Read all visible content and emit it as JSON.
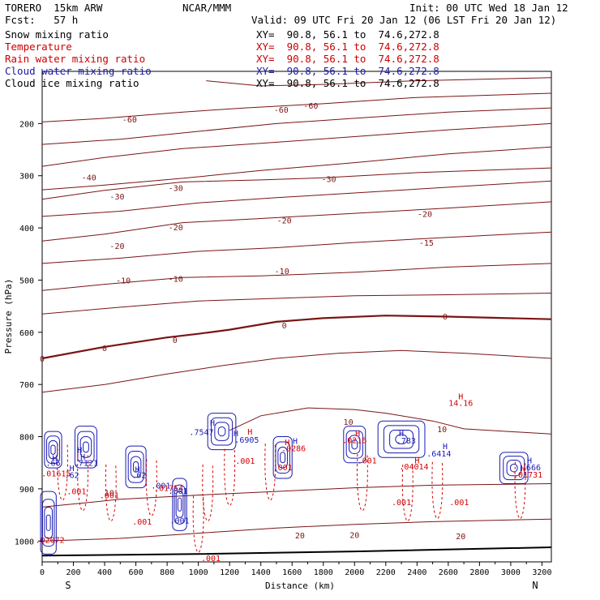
{
  "header": {
    "model": "TORERO  15km ARW",
    "fcst": "Fcst:   57 h",
    "center": "NCAR/MMM",
    "init": "Init: 00 UTC Wed 18 Jan 12",
    "valid": "Valid: 09 UTC Fri 20 Jan 12 (06 LST Fri 20 Jan 12)"
  },
  "legend": [
    {
      "label": "Snow mixing ratio",
      "xy": "XY=  90.8, 56.1 to  74.6,272.8",
      "color": "#000000"
    },
    {
      "label": "Temperature",
      "xy": "XY=  90.8, 56.1 to  74.6,272.8",
      "color": "#cc0000"
    },
    {
      "label": "Rain water mixing ratio",
      "xy": "XY=  90.8, 56.1 to  74.6,272.8",
      "color": "#cc0000"
    },
    {
      "label": "Cloud water mixing ratio",
      "xy": "XY=  90.8, 56.1 to  74.6,272.8",
      "color": "#1a1aa0"
    },
    {
      "label": "Cloud ice mixing ratio",
      "xy": "XY=  90.8, 56.1 to  74.6,272.8",
      "color": "#000000"
    }
  ],
  "colors": {
    "temperature": "#7a1414",
    "rain": "#d40000",
    "cloud_water": "#1a1ab4",
    "terrain": "#000000"
  },
  "chart_data": {
    "type": "contour-cross-section",
    "xlabel": "Distance (km)",
    "ylabel": "Pressure (hPa)",
    "xlim": [
      0,
      3260
    ],
    "ylim": [
      1040,
      100
    ],
    "x_ticks": [
      0,
      200,
      400,
      600,
      800,
      1000,
      1200,
      1400,
      1600,
      1800,
      2000,
      2200,
      2400,
      2600,
      2800,
      3000,
      3200
    ],
    "y_ticks": [
      200,
      300,
      400,
      500,
      600,
      700,
      800,
      900,
      1000
    ],
    "endpoints": {
      "left": "S",
      "right": "N"
    },
    "terrain_surface": [
      [
        0,
        1028
      ],
      [
        1000,
        1025
      ],
      [
        2000,
        1020
      ],
      [
        3260,
        1012
      ]
    ],
    "temperature_contours": [
      {
        "level": -60,
        "points": [
          [
            0,
            197
          ],
          [
            400,
            190
          ],
          [
            900,
            178
          ],
          [
            1300,
            170
          ],
          [
            1800,
            162
          ],
          [
            2400,
            150
          ],
          [
            3260,
            142
          ]
        ],
        "labels": [
          [
            560,
            192,
            "-60"
          ],
          [
            1530,
            173,
            "-60"
          ],
          [
            1720,
            165,
            "-60"
          ]
        ]
      },
      {
        "level": -60,
        "points": [
          [
            1050,
            118
          ],
          [
            1400,
            128
          ],
          [
            1800,
            125
          ],
          [
            2400,
            118
          ],
          [
            3260,
            112
          ]
        ],
        "labels": []
      },
      {
        "level": -50,
        "points": [
          [
            0,
            240
          ],
          [
            500,
            230
          ],
          [
            1000,
            215
          ],
          [
            1500,
            200
          ],
          [
            2000,
            190
          ],
          [
            2600,
            178
          ],
          [
            3260,
            170
          ]
        ],
        "labels": []
      },
      {
        "level": -40,
        "points": [
          [
            0,
            282
          ],
          [
            400,
            265
          ],
          [
            900,
            248
          ],
          [
            1400,
            238
          ],
          [
            2000,
            225
          ],
          [
            2600,
            212
          ],
          [
            3260,
            200
          ]
        ],
        "labels": [
          [
            300,
            303,
            "-40"
          ]
        ]
      },
      {
        "level": -35,
        "points": [
          [
            0,
            327
          ],
          [
            400,
            318
          ],
          [
            900,
            305
          ],
          [
            1400,
            290
          ],
          [
            2000,
            275
          ],
          [
            2600,
            258
          ],
          [
            3260,
            245
          ]
        ],
        "labels": []
      },
      {
        "level": -30,
        "points": [
          [
            0,
            345
          ],
          [
            400,
            328
          ],
          [
            900,
            312
          ],
          [
            1400,
            308
          ],
          [
            1800,
            304
          ],
          [
            2400,
            294
          ],
          [
            3260,
            285
          ]
        ],
        "labels": [
          [
            480,
            339,
            "-30"
          ],
          [
            855,
            323,
            "-30"
          ],
          [
            1835,
            306,
            "-30"
          ]
        ]
      },
      {
        "level": -25,
        "points": [
          [
            0,
            378
          ],
          [
            500,
            368
          ],
          [
            1000,
            352
          ],
          [
            1500,
            342
          ],
          [
            2000,
            333
          ],
          [
            2600,
            322
          ],
          [
            3260,
            310
          ]
        ],
        "labels": []
      },
      {
        "level": -20,
        "points": [
          [
            0,
            425
          ],
          [
            400,
            412
          ],
          [
            900,
            390
          ],
          [
            1400,
            382
          ],
          [
            2000,
            372
          ],
          [
            2600,
            362
          ],
          [
            3260,
            350
          ]
        ],
        "labels": [
          [
            480,
            434,
            "-20"
          ],
          [
            855,
            398,
            "-20"
          ],
          [
            1550,
            385,
            "-20"
          ],
          [
            2450,
            373,
            "-20"
          ]
        ]
      },
      {
        "level": -15,
        "points": [
          [
            0,
            468
          ],
          [
            500,
            458
          ],
          [
            1000,
            445
          ],
          [
            1500,
            438
          ],
          [
            2000,
            428
          ],
          [
            2600,
            418
          ],
          [
            3260,
            408
          ]
        ],
        "labels": [
          [
            2460,
            428,
            "-15"
          ]
        ]
      },
      {
        "level": -10,
        "points": [
          [
            0,
            520
          ],
          [
            400,
            508
          ],
          [
            900,
            495
          ],
          [
            1400,
            492
          ],
          [
            2000,
            485
          ],
          [
            2600,
            475
          ],
          [
            3260,
            468
          ]
        ],
        "labels": [
          [
            520,
            500,
            "-10"
          ],
          [
            855,
            497,
            "-10"
          ],
          [
            1535,
            482,
            "-10"
          ]
        ]
      },
      {
        "level": -5,
        "points": [
          [
            0,
            565
          ],
          [
            500,
            552
          ],
          [
            1000,
            540
          ],
          [
            1500,
            535
          ],
          [
            2000,
            530
          ],
          [
            2600,
            528
          ],
          [
            3260,
            525
          ]
        ],
        "labels": []
      },
      {
        "level": 0,
        "points": [
          [
            0,
            650
          ],
          [
            400,
            628
          ],
          [
            800,
            610
          ],
          [
            1000,
            603
          ],
          [
            1200,
            595
          ],
          [
            1500,
            580
          ],
          [
            1800,
            573
          ],
          [
            2200,
            568
          ],
          [
            2600,
            570
          ],
          [
            3260,
            575
          ]
        ],
        "labels": [
          [
            0,
            650,
            "0"
          ],
          [
            400,
            630,
            "0"
          ],
          [
            850,
            614,
            "0"
          ],
          [
            1550,
            586,
            "0"
          ],
          [
            2580,
            569,
            "0"
          ]
        ]
      },
      {
        "level": 5,
        "points": [
          [
            0,
            715
          ],
          [
            400,
            700
          ],
          [
            800,
            680
          ],
          [
            1150,
            664
          ],
          [
            1500,
            650
          ],
          [
            1900,
            640
          ],
          [
            2300,
            635
          ],
          [
            2700,
            640
          ],
          [
            3260,
            650
          ]
        ],
        "labels": []
      },
      {
        "level": 10,
        "points": [
          [
            1200,
            788
          ],
          [
            1400,
            760
          ],
          [
            1700,
            745
          ],
          [
            2000,
            748
          ],
          [
            2200,
            755
          ],
          [
            2500,
            770
          ],
          [
            2700,
            785
          ],
          [
            3260,
            795
          ]
        ],
        "labels": [
          [
            1960,
            771,
            "10"
          ],
          [
            2560,
            785,
            "10"
          ],
          [
            430,
            907,
            "10"
          ]
        ]
      },
      {
        "level": 15,
        "points": [
          [
            0,
            935
          ],
          [
            500,
            920
          ],
          [
            1000,
            912
          ],
          [
            1500,
            905
          ],
          [
            2000,
            898
          ],
          [
            2500,
            893
          ],
          [
            3260,
            890
          ]
        ],
        "labels": []
      },
      {
        "level": 20,
        "points": [
          [
            0,
            1000
          ],
          [
            500,
            995
          ],
          [
            1000,
            985
          ],
          [
            1500,
            975
          ],
          [
            2000,
            968
          ],
          [
            2500,
            963
          ],
          [
            3260,
            958
          ]
        ],
        "labels": [
          [
            1650,
            989,
            "20"
          ],
          [
            2000,
            988,
            "20"
          ],
          [
            2680,
            990,
            "20"
          ]
        ]
      }
    ],
    "cloud_water_blobs": [
      {
        "x": 70,
        "p": 825,
        "rx": 55,
        "ry": 35
      },
      {
        "x": 280,
        "p": 820,
        "rx": 70,
        "ry": 40
      },
      {
        "x": 600,
        "p": 858,
        "rx": 65,
        "ry": 40
      },
      {
        "x": 880,
        "p": 930,
        "rx": 45,
        "ry": 50
      },
      {
        "x": 1150,
        "p": 790,
        "rx": 90,
        "ry": 35
      },
      {
        "x": 1540,
        "p": 840,
        "rx": 60,
        "ry": 40
      },
      {
        "x": 2000,
        "p": 815,
        "rx": 70,
        "ry": 35
      },
      {
        "x": 2300,
        "p": 805,
        "rx": 150,
        "ry": 35
      },
      {
        "x": 3020,
        "p": 860,
        "rx": 90,
        "ry": 30
      },
      {
        "x": 40,
        "p": 965,
        "rx": 50,
        "ry": 60
      }
    ],
    "rain_streaks": [
      [
        130,
        860
      ],
      [
        260,
        880
      ],
      [
        440,
        900
      ],
      [
        700,
        890
      ],
      [
        1060,
        900
      ],
      [
        1200,
        870
      ],
      [
        1460,
        860
      ],
      [
        2050,
        880
      ],
      [
        2340,
        900
      ],
      [
        2530,
        895
      ],
      [
        3060,
        895
      ],
      [
        1000,
        960
      ]
    ],
    "annotations": [
      {
        "x": 80,
        "p": 840,
        "text": "H",
        "color": "#1a1ab4"
      },
      {
        "x": 70,
        "p": 850,
        "text": ".66",
        "color": "#1a1ab4"
      },
      {
        "x": 240,
        "p": 825,
        "text": "H",
        "color": "#1a1ab4"
      },
      {
        "x": 260,
        "p": 838,
        "text": "H",
        "color": "#1a1ab4"
      },
      {
        "x": 280,
        "p": 850,
        "text": ".7121",
        "color": "#1a1ab4"
      },
      {
        "x": 90,
        "p": 870,
        "text": ".01615",
        "color": "#d40000"
      },
      {
        "x": 190,
        "p": 860,
        "text": "H",
        "color": "#1a1ab4"
      },
      {
        "x": 190,
        "p": 873,
        "text": ".62",
        "color": "#1a1ab4"
      },
      {
        "x": 620,
        "p": 873,
        "text": ".62",
        "color": "#1a1ab4"
      },
      {
        "x": 610,
        "p": 862,
        "text": "H",
        "color": "#1a1ab4"
      },
      {
        "x": 1240,
        "p": 793,
        "text": "H",
        "color": "#1a1ab4"
      },
      {
        "x": 1020,
        "p": 791,
        "text": ".7547",
        "color": "#1a1ab4"
      },
      {
        "x": 1090,
        "p": 773,
        "text": "H",
        "color": "#1a1ab4"
      },
      {
        "x": 1330,
        "p": 790,
        "text": "H",
        "color": "#d40000"
      },
      {
        "x": 1310,
        "p": 805,
        "text": ".6905",
        "color": "#1a1ab4"
      },
      {
        "x": 1620,
        "p": 808,
        "text": "H",
        "color": "#1a1ab4"
      },
      {
        "x": 1570,
        "p": 810,
        "text": "H",
        "color": "#d40000"
      },
      {
        "x": 1610,
        "p": 822,
        "text": ".0286",
        "color": "#d40000"
      },
      {
        "x": 2020,
        "p": 793,
        "text": "H",
        "color": "#d40000"
      },
      {
        "x": 2000,
        "p": 806,
        "text": ".0216",
        "color": "#d40000"
      },
      {
        "x": 2300,
        "p": 793,
        "text": "H",
        "color": "#1a1ab4"
      },
      {
        "x": 2330,
        "p": 807,
        "text": ".783",
        "color": "#1a1ab4"
      },
      {
        "x": 2580,
        "p": 818,
        "text": "H",
        "color": "#1a1ab4"
      },
      {
        "x": 2540,
        "p": 832,
        "text": ".6414",
        "color": "#1a1ab4"
      },
      {
        "x": 2400,
        "p": 845,
        "text": "H",
        "color": "#d40000"
      },
      {
        "x": 2380,
        "p": 857,
        "text": ".04014",
        "color": "#d40000"
      },
      {
        "x": 2680,
        "p": 722,
        "text": "H",
        "color": "#d40000"
      },
      {
        "x": 2680,
        "p": 735,
        "text": "14.16",
        "color": "#d40000"
      },
      {
        "x": 3120,
        "p": 845,
        "text": "H",
        "color": "#1a1ab4"
      },
      {
        "x": 3130,
        "p": 858,
        "text": ".666",
        "color": "#1a1ab4"
      },
      {
        "x": 3080,
        "p": 860,
        "text": "H",
        "color": "#d40000"
      },
      {
        "x": 3110,
        "p": 872,
        "text": ".01731",
        "color": "#d40000"
      },
      {
        "x": 810,
        "p": 898,
        "text": ".01754",
        "color": "#d40000"
      },
      {
        "x": 220,
        "p": 904,
        "text": ".001",
        "color": "#d40000"
      },
      {
        "x": 430,
        "p": 912,
        "text": ".001",
        "color": "#d40000"
      },
      {
        "x": 760,
        "p": 893,
        "text": ".001",
        "color": "#1a1ab4"
      },
      {
        "x": 870,
        "p": 903,
        "text": ".001",
        "color": "#1a1ab4"
      },
      {
        "x": 1300,
        "p": 846,
        "text": ".001",
        "color": "#d40000"
      },
      {
        "x": 1540,
        "p": 858,
        "text": ".001",
        "color": "#d40000"
      },
      {
        "x": 2080,
        "p": 845,
        "text": ".001",
        "color": "#d40000"
      },
      {
        "x": 2300,
        "p": 925,
        "text": ".001",
        "color": "#d40000"
      },
      {
        "x": 2670,
        "p": 925,
        "text": ".001",
        "color": "#d40000"
      },
      {
        "x": 640,
        "p": 962,
        "text": ".001",
        "color": "#d40000"
      },
      {
        "x": 880,
        "p": 960,
        "text": ".001",
        "color": "#1a1ab4"
      },
      {
        "x": 1080,
        "p": 1032,
        "text": ".001",
        "color": "#d40000"
      },
      {
        "x": 50,
        "p": 997,
        "text": ".02072",
        "color": "#d40000"
      }
    ]
  }
}
